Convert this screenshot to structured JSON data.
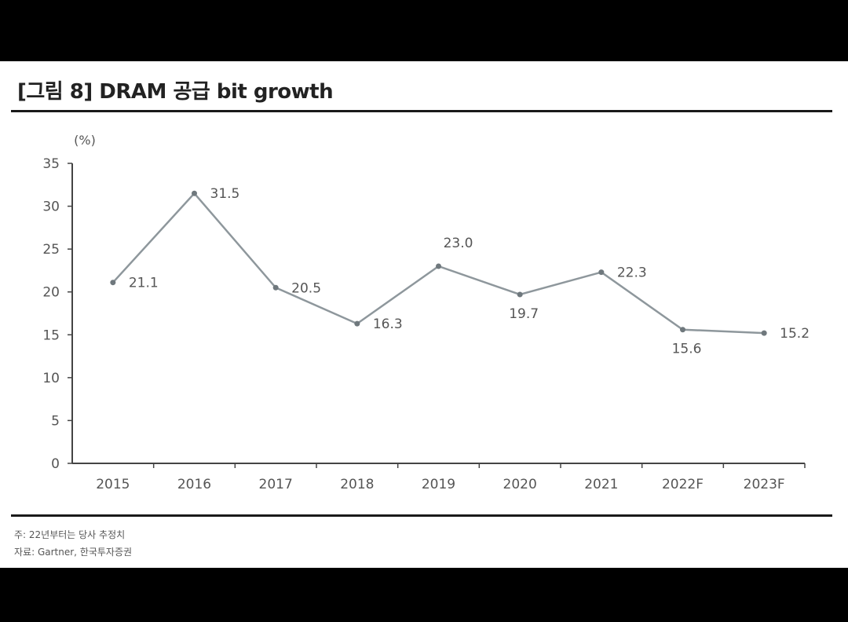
{
  "title": "[그림 8] DRAM 공급 bit growth",
  "footnotes": {
    "note": "주: 22년부터는 당사 추정치",
    "source": "자료: Gartner, 한국투자증권"
  },
  "chart_data": {
    "type": "line",
    "categories": [
      "2015",
      "2016",
      "2017",
      "2018",
      "2019",
      "2020",
      "2021",
      "2022F",
      "2023F"
    ],
    "series": [
      {
        "values": [
          21.1,
          31.5,
          20.5,
          16.3,
          23.0,
          19.7,
          22.3,
          15.6,
          15.2
        ]
      }
    ],
    "data_labels": [
      "21.1",
      "31.5",
      "20.5",
      "16.3",
      "23.0",
      "19.7",
      "22.3",
      "15.6",
      "15.2"
    ],
    "y_unit": "(%)",
    "ylim": [
      0,
      35
    ],
    "y_ticks": [
      "0",
      "5",
      "10",
      "15",
      "20",
      "25",
      "30",
      "35"
    ],
    "grid": false,
    "line_color": "#8e979c"
  }
}
